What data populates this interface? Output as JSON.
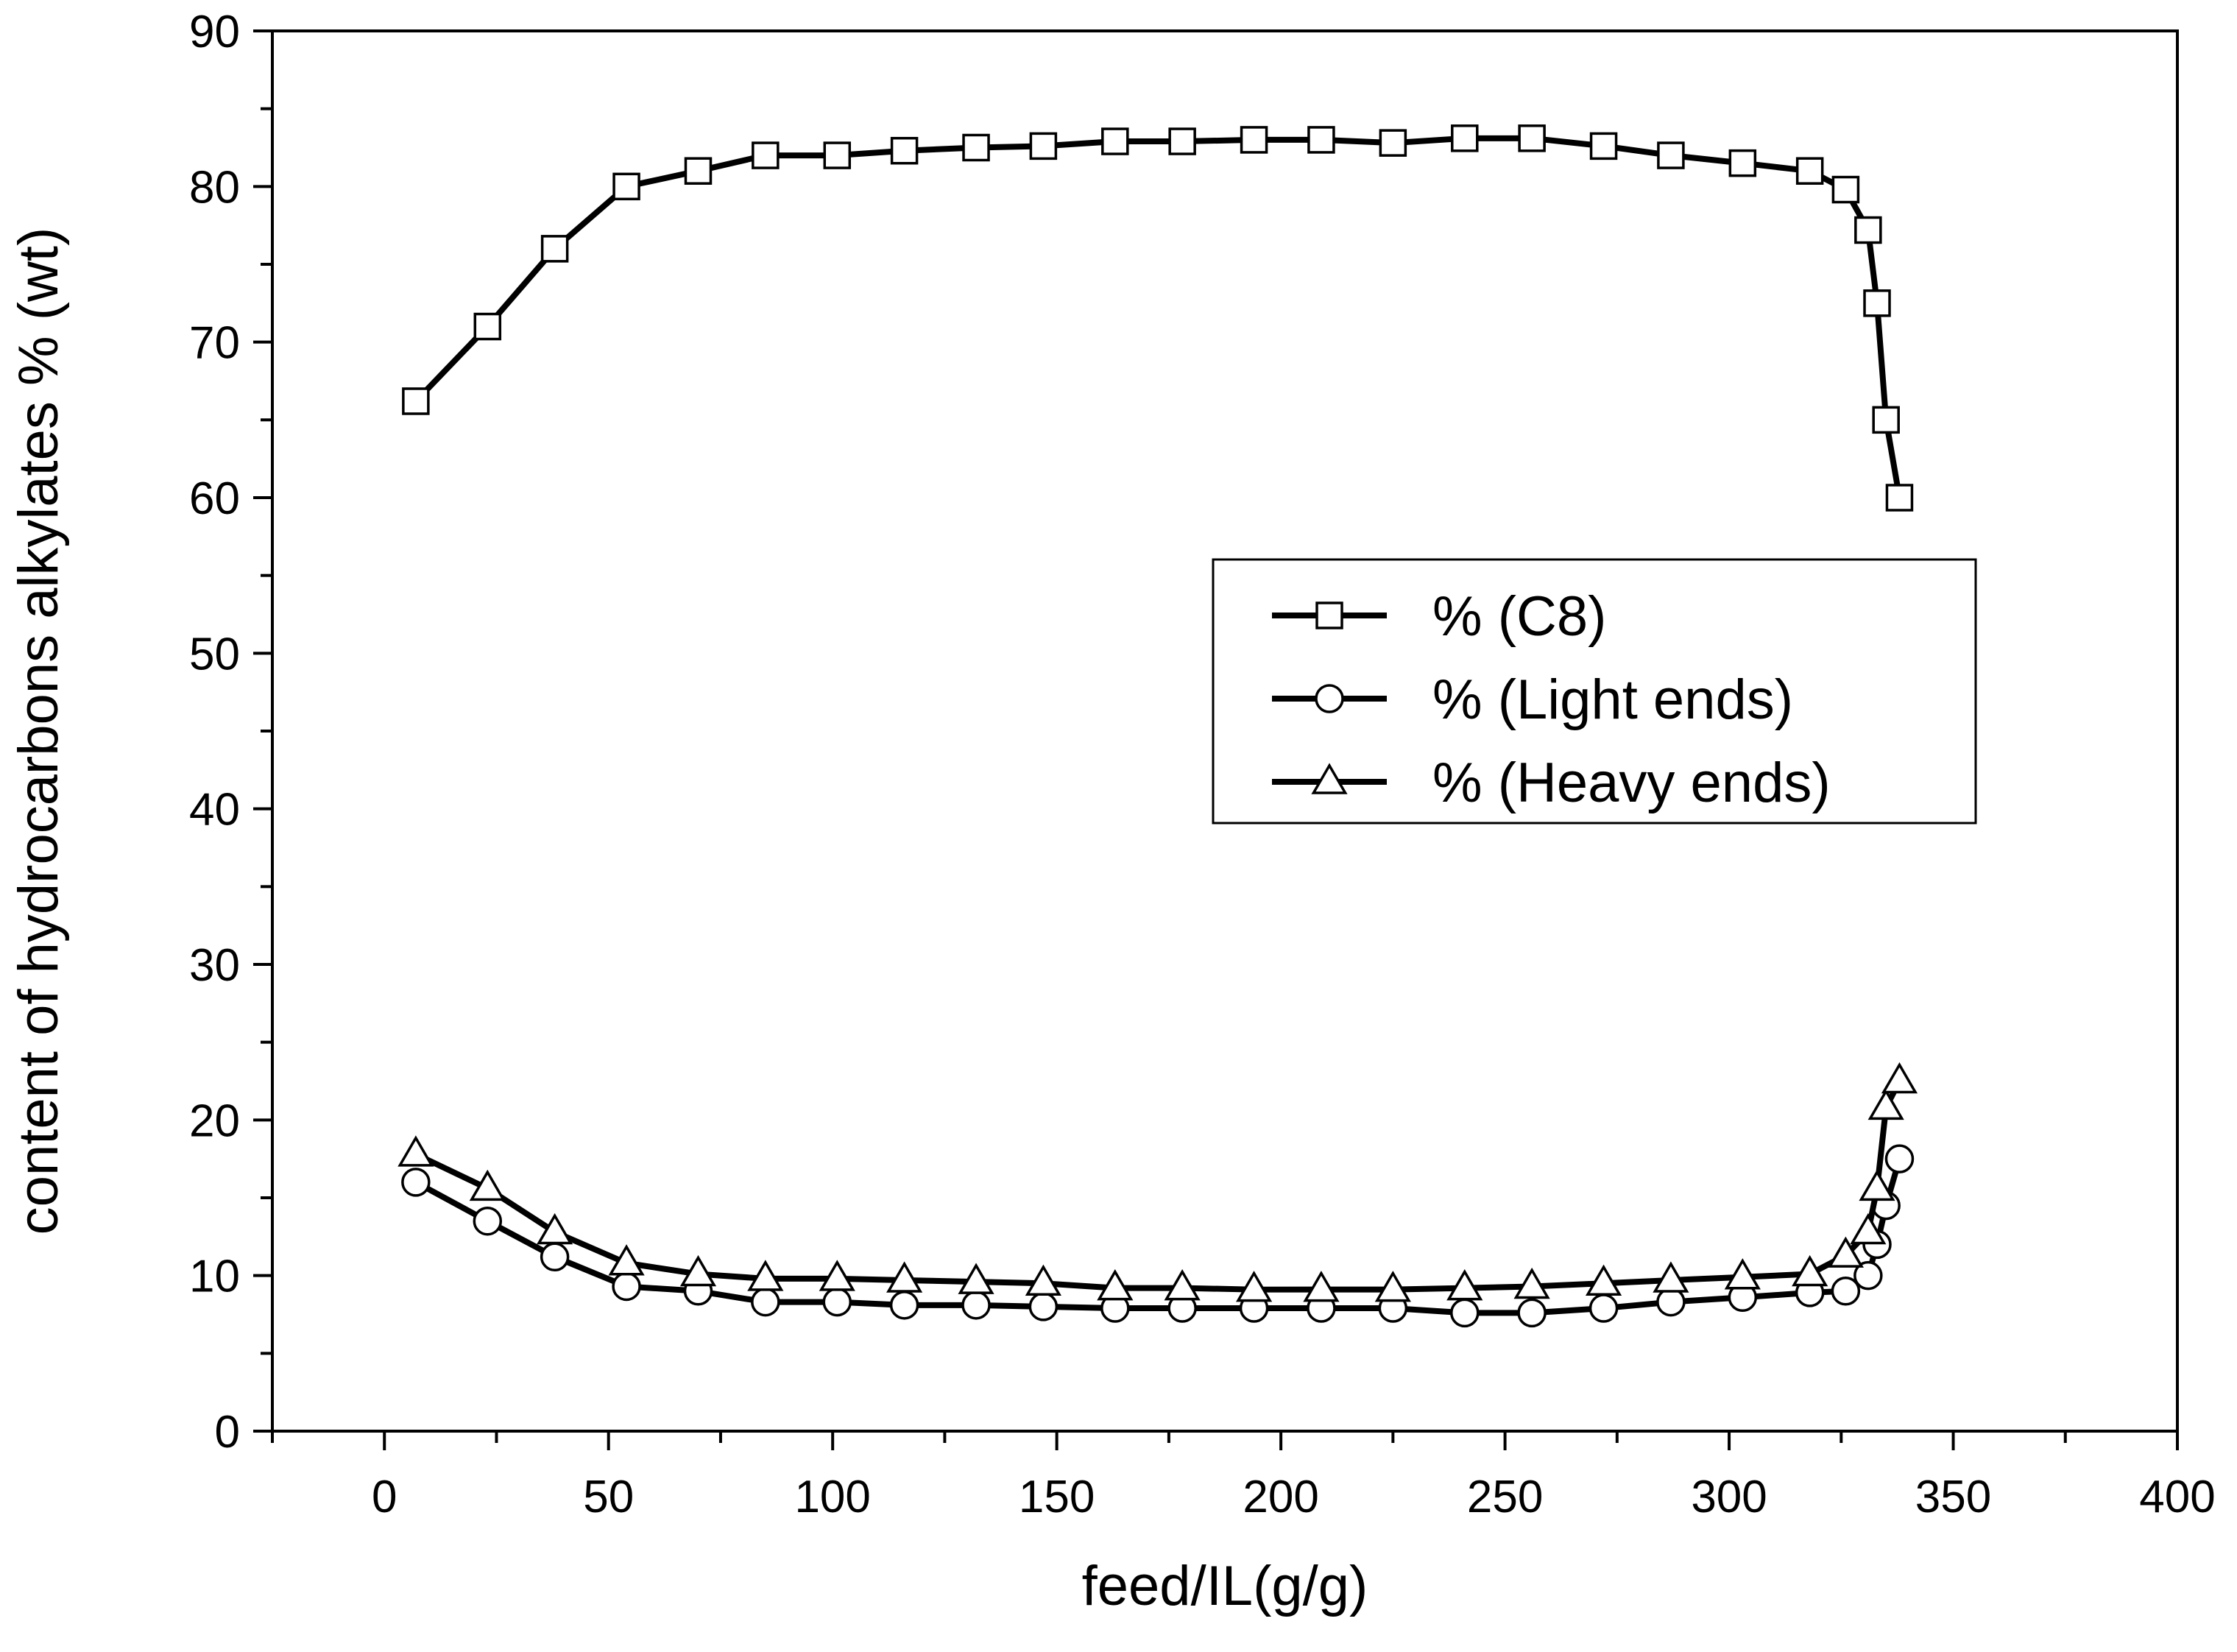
{
  "chart_data": {
    "type": "line",
    "title": "",
    "xlabel": "feed/IL(g/g)",
    "ylabel": "content of hydrocarbons alkylates % (wt)",
    "xlim": [
      -25,
      400
    ],
    "ylim": [
      0,
      90
    ],
    "xticks": [
      0,
      50,
      100,
      150,
      200,
      250,
      300,
      350,
      400
    ],
    "yticks": [
      0,
      10,
      20,
      30,
      40,
      50,
      60,
      70,
      80,
      90
    ],
    "xtick_labels": [
      "0",
      "50",
      "100",
      "150",
      "200",
      "250",
      "300",
      "350",
      "400"
    ],
    "ytick_labels": [
      "0",
      "10",
      "20",
      "30",
      "40",
      "50",
      "60",
      "70",
      "80",
      "90"
    ],
    "grid": false,
    "legend_position": "center-right",
    "x": [
      7,
      23,
      38,
      54,
      70,
      85,
      101,
      116,
      132,
      147,
      163,
      178,
      194,
      209,
      225,
      241,
      256,
      272,
      287,
      303,
      318,
      326,
      331,
      333,
      335,
      338
    ],
    "series": [
      {
        "name": "% (C8)",
        "marker": "square",
        "values": [
          66.2,
          71.0,
          76.0,
          80.0,
          81.0,
          82.0,
          82.0,
          82.3,
          82.5,
          82.6,
          82.9,
          82.9,
          83.0,
          83.0,
          82.8,
          83.1,
          83.1,
          82.6,
          82.0,
          81.5,
          81.0,
          79.8,
          77.2,
          72.5,
          65.0,
          60.0
        ]
      },
      {
        "name": "% (Light ends)",
        "marker": "circle",
        "values": [
          16.0,
          13.5,
          11.2,
          9.3,
          9.0,
          8.3,
          8.3,
          8.1,
          8.1,
          8.0,
          7.9,
          7.9,
          7.9,
          7.9,
          7.9,
          7.6,
          7.6,
          7.9,
          8.3,
          8.6,
          8.9,
          9.0,
          10.0,
          12.0,
          14.5,
          17.5
        ]
      },
      {
        "name": "% (Heavy ends)",
        "marker": "triangle",
        "values": [
          17.8,
          15.6,
          12.8,
          10.8,
          10.1,
          9.8,
          9.8,
          9.7,
          9.6,
          9.5,
          9.2,
          9.2,
          9.1,
          9.1,
          9.1,
          9.2,
          9.3,
          9.5,
          9.7,
          9.9,
          10.1,
          11.3,
          12.8,
          15.6,
          20.8,
          22.5
        ]
      }
    ]
  }
}
